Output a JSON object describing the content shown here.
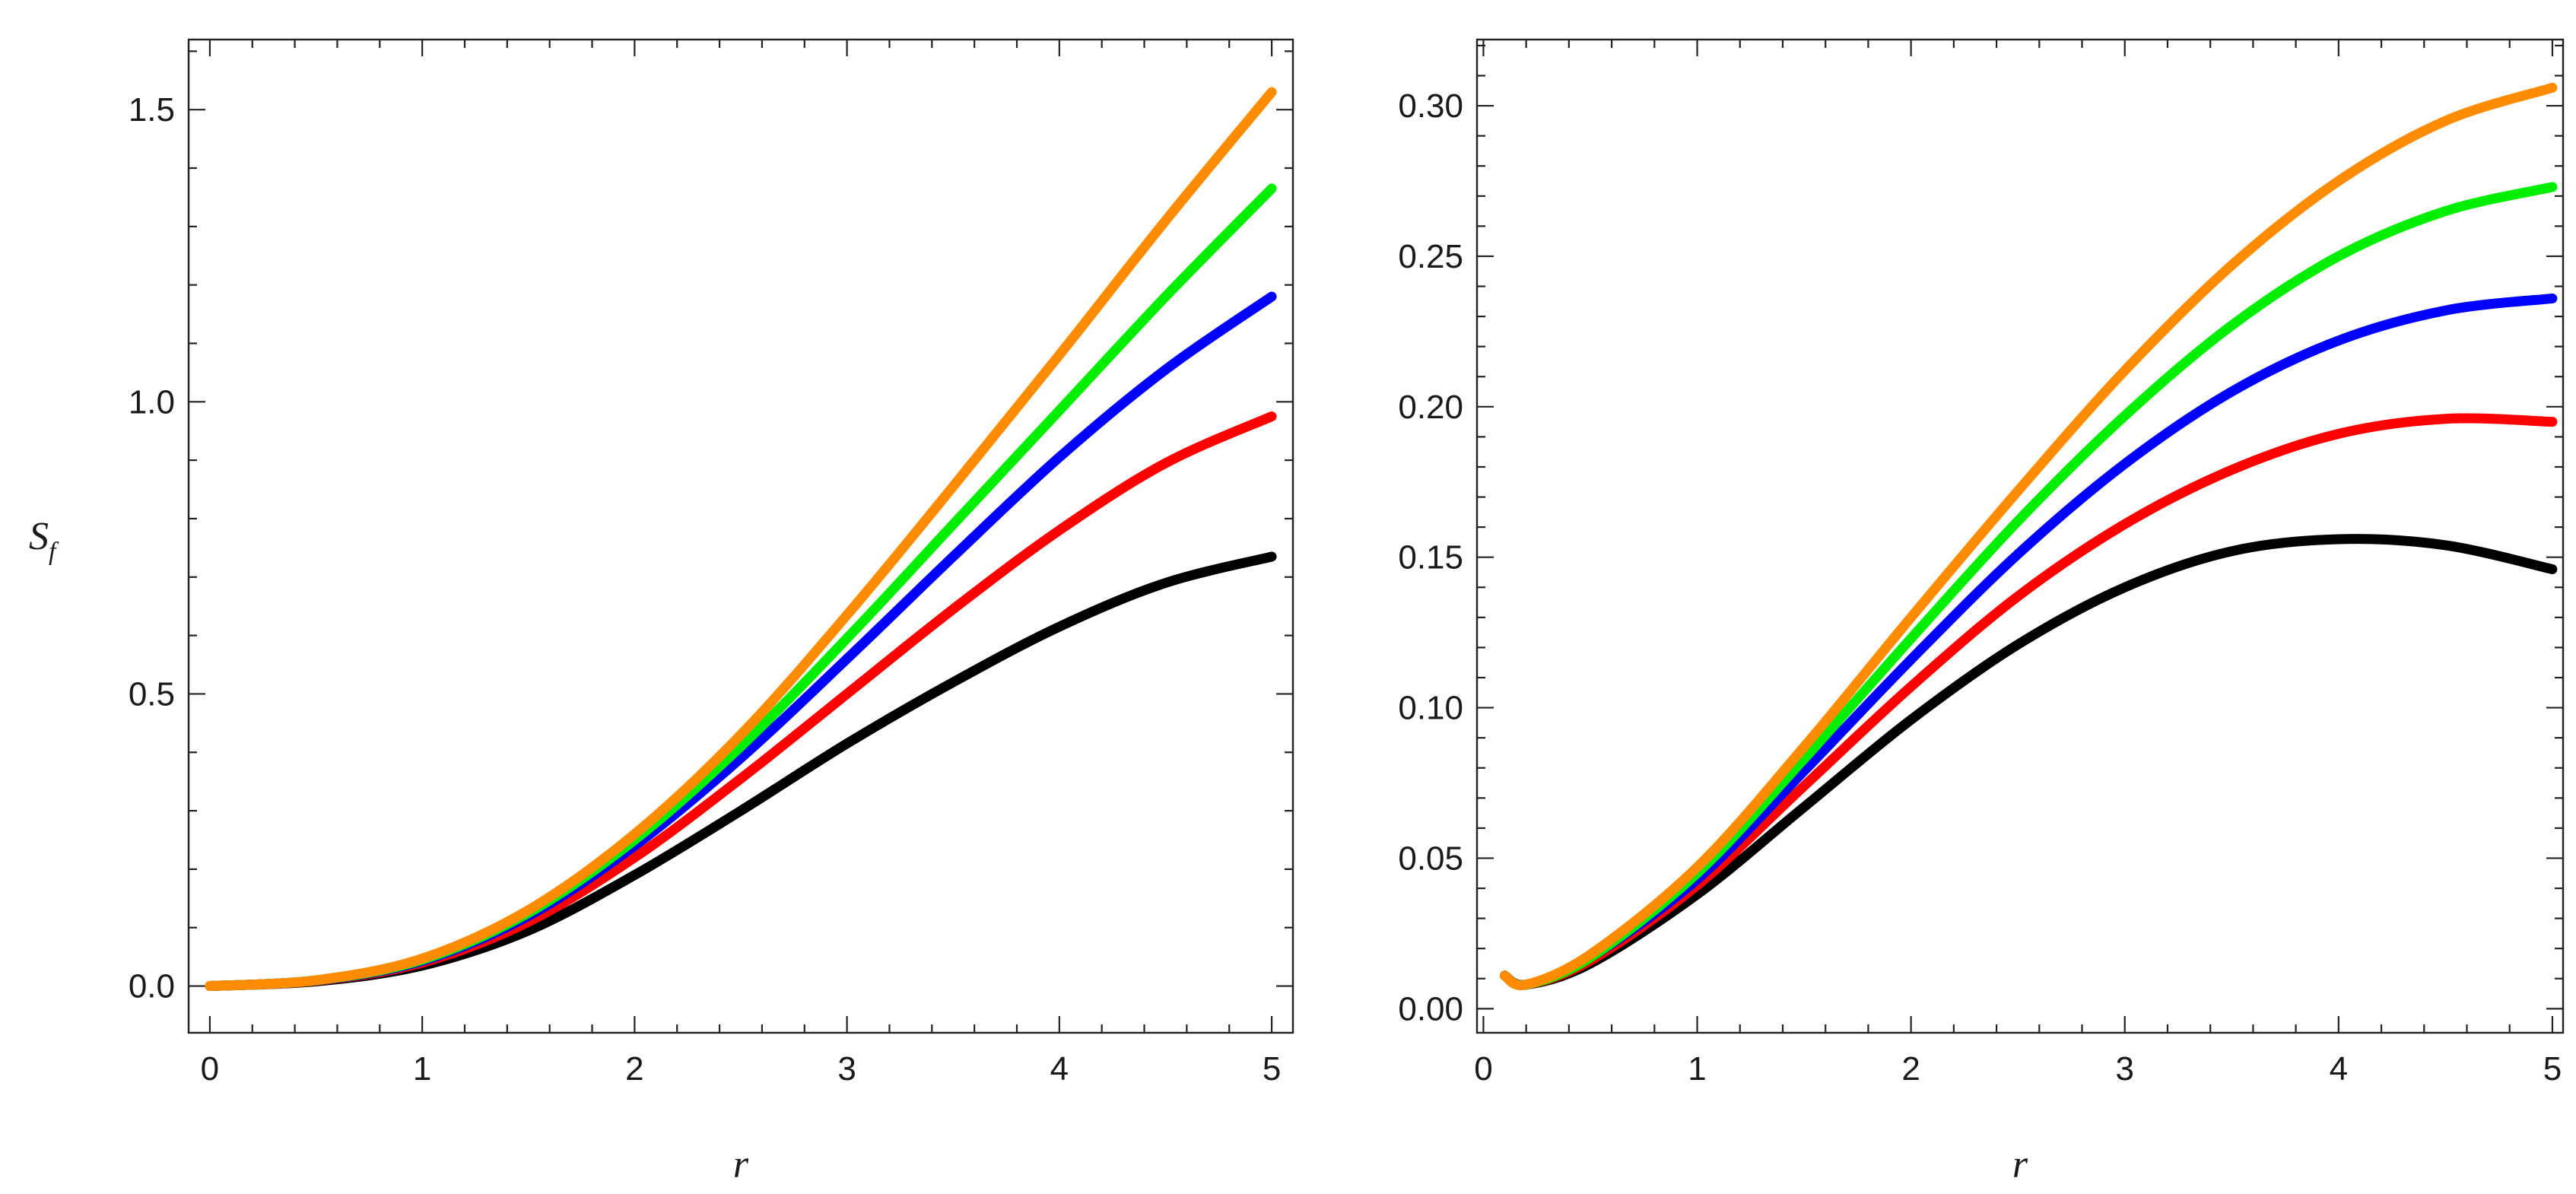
{
  "chart_data": [
    {
      "type": "line",
      "xlabel": "r",
      "ylabel": "S",
      "ylabel_sub": "f",
      "xlim": [
        -0.1,
        5.1
      ],
      "ylim": [
        -0.08,
        1.62
      ],
      "xticks": [
        0,
        1,
        2,
        3,
        4,
        5
      ],
      "xtick_labels": [
        "0",
        "1",
        "2",
        "3",
        "4",
        "5"
      ],
      "yticks": [
        0.0,
        0.5,
        1.0,
        1.5
      ],
      "ytick_labels": [
        "0.0",
        "0.5",
        "1.0",
        "1.5"
      ],
      "grid": false,
      "series": [
        {
          "color": "#000000",
          "x": [
            0,
            0.5,
            1,
            1.5,
            2,
            2.5,
            3,
            3.5,
            4,
            4.5,
            5
          ],
          "y": [
            0.0,
            0.008,
            0.035,
            0.095,
            0.19,
            0.3,
            0.415,
            0.52,
            0.615,
            0.69,
            0.735
          ]
        },
        {
          "color": "#ff0000",
          "x": [
            0,
            0.5,
            1,
            1.5,
            2,
            2.5,
            3,
            3.5,
            4,
            4.5,
            5
          ],
          "y": [
            0.0,
            0.009,
            0.04,
            0.11,
            0.22,
            0.355,
            0.5,
            0.645,
            0.78,
            0.895,
            0.975
          ]
        },
        {
          "color": "#0000ff",
          "x": [
            0,
            0.5,
            1,
            1.5,
            2,
            2.5,
            3,
            3.5,
            4,
            4.5,
            5
          ],
          "y": [
            0.0,
            0.0095,
            0.043,
            0.12,
            0.24,
            0.39,
            0.56,
            0.735,
            0.905,
            1.055,
            1.18
          ]
        },
        {
          "color": "#00ee00",
          "x": [
            0,
            0.5,
            1,
            1.5,
            2,
            2.5,
            3,
            3.5,
            4,
            4.5,
            5
          ],
          "y": [
            0.0,
            0.0098,
            0.045,
            0.125,
            0.25,
            0.41,
            0.595,
            0.79,
            0.985,
            1.18,
            1.365
          ]
        },
        {
          "color": "#ff8c00",
          "x": [
            0,
            0.5,
            1,
            1.5,
            2,
            2.5,
            3,
            3.5,
            4,
            4.5,
            5
          ],
          "y": [
            0.0,
            0.01,
            0.047,
            0.13,
            0.26,
            0.43,
            0.635,
            0.855,
            1.08,
            1.31,
            1.53
          ]
        }
      ]
    },
    {
      "type": "line",
      "xlabel": "r",
      "ylabel": "",
      "xlim": [
        -0.03,
        5.05
      ],
      "ylim": [
        -0.008,
        0.322
      ],
      "xticks": [
        0,
        1,
        2,
        3,
        4,
        5
      ],
      "xtick_labels": [
        "0",
        "1",
        "2",
        "3",
        "4",
        "5"
      ],
      "yticks": [
        0.0,
        0.05,
        0.1,
        0.15,
        0.2,
        0.25,
        0.3
      ],
      "ytick_labels": [
        "0.00",
        "0.05",
        "0.10",
        "0.15",
        "0.20",
        "0.25",
        "0.30"
      ],
      "grid": false,
      "series": [
        {
          "color": "#000000",
          "x": [
            0.1,
            0.2,
            0.5,
            1,
            1.5,
            2,
            2.5,
            3,
            3.5,
            4,
            4.5,
            5
          ],
          "y": [
            0.011,
            0.008,
            0.015,
            0.038,
            0.067,
            0.096,
            0.121,
            0.14,
            0.152,
            0.156,
            0.154,
            0.146
          ]
        },
        {
          "color": "#ff0000",
          "x": [
            0.1,
            0.2,
            0.5,
            1,
            1.5,
            2,
            2.5,
            3,
            3.5,
            4,
            4.5,
            5
          ],
          "y": [
            0.011,
            0.008,
            0.016,
            0.041,
            0.074,
            0.107,
            0.137,
            0.161,
            0.179,
            0.191,
            0.196,
            0.195
          ]
        },
        {
          "color": "#0000ff",
          "x": [
            0.1,
            0.2,
            0.5,
            1,
            1.5,
            2,
            2.5,
            3,
            3.5,
            4,
            4.5,
            5
          ],
          "y": [
            0.011,
            0.008,
            0.017,
            0.043,
            0.079,
            0.116,
            0.151,
            0.181,
            0.205,
            0.222,
            0.232,
            0.236
          ]
        },
        {
          "color": "#00ee00",
          "x": [
            0.1,
            0.2,
            0.5,
            1,
            1.5,
            2,
            2.5,
            3,
            3.5,
            4,
            4.5,
            5
          ],
          "y": [
            0.011,
            0.008,
            0.017,
            0.045,
            0.083,
            0.123,
            0.162,
            0.197,
            0.227,
            0.25,
            0.265,
            0.273
          ]
        },
        {
          "color": "#ff8c00",
          "x": [
            0.1,
            0.2,
            0.5,
            1,
            1.5,
            2,
            2.5,
            3,
            3.5,
            4,
            4.5,
            5
          ],
          "y": [
            0.011,
            0.008,
            0.018,
            0.047,
            0.087,
            0.13,
            0.172,
            0.212,
            0.247,
            0.275,
            0.295,
            0.306
          ]
        }
      ]
    }
  ]
}
